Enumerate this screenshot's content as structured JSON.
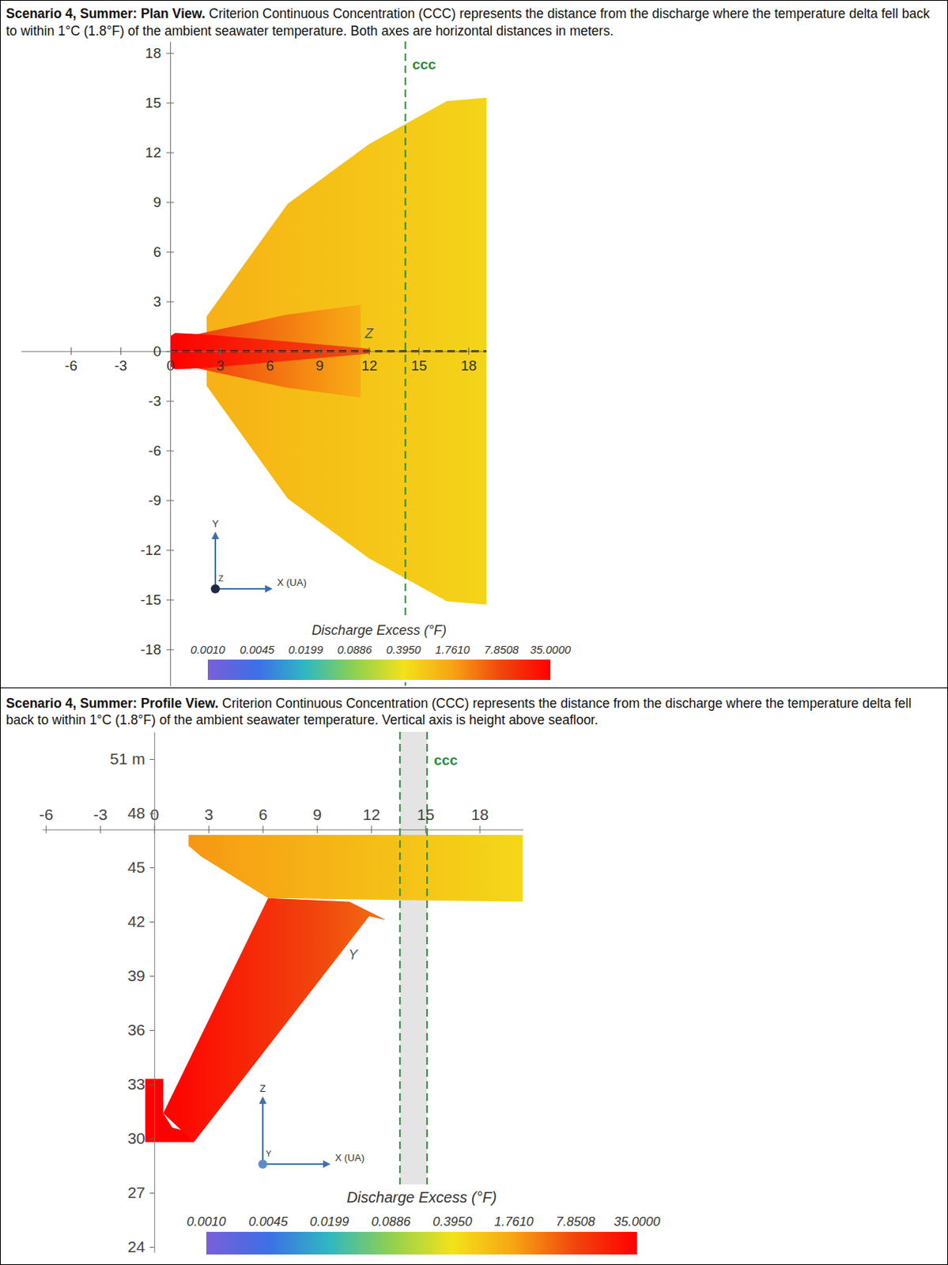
{
  "chart_data": [
    {
      "type": "plan_view",
      "title": "Scenario 4, Summer: Plan View.",
      "subtitle": "Criterion Continuous Concentration (CCC) represents the distance from the discharge where the temperature delta fell back to within 1°C (1.8°F) of the ambient seawater temperature. Both axes are horizontal distances in meters.",
      "xlim": [
        -9,
        19.1
      ],
      "ylim": [
        -20.2,
        18.7
      ],
      "xticks": [
        -6,
        -3,
        0,
        3,
        6,
        9,
        12,
        15,
        18
      ],
      "yticks": [
        -18,
        -15,
        -12,
        -9,
        -6,
        -3,
        0,
        3,
        6,
        9,
        12,
        15,
        18
      ],
      "plume": [
        {
          "x": [
            2.2,
            7.1,
            12,
            16.7,
            19.1,
            19.1,
            16.7,
            12,
            7.1,
            2.2
          ],
          "y": [
            2.1,
            8.9,
            12.5,
            15.1,
            15.3,
            -15.3,
            -15.1,
            -12.5,
            -8.9,
            -2.1
          ],
          "excess": [
            1.3,
            0.55
          ]
        },
        {
          "x": [
            1.5,
            7,
            11.5,
            11.5,
            7,
            1.5
          ],
          "y": [
            1.0,
            2.2,
            2.8,
            -2.8,
            -2.2,
            -1.0
          ],
          "excess": [
            9,
            1.5
          ]
        },
        {
          "x": [
            0,
            0.3,
            2.3,
            12,
            12,
            2.3,
            0.3,
            0
          ],
          "y": [
            0.9,
            1.1,
            1.0,
            0.15,
            -0.15,
            -1.0,
            -1.1,
            -0.9
          ],
          "excess": [
            35,
            6
          ]
        }
      ],
      "ccc": {
        "label": "ccc",
        "x": [
          14.2
        ]
      },
      "annotations": [
        {
          "text": "Z",
          "x": 12,
          "y": 0.8
        }
      ],
      "axis_triad": {
        "x": "X (UA)",
        "y": "Y",
        "z": "Z"
      },
      "colorbar": {
        "title": "Discharge Excess (°F)",
        "log": true,
        "range": [
          0.001,
          35
        ],
        "ticks": [
          {
            "value": 0.001,
            "label": "0.0010"
          },
          0.0045,
          0.0199,
          0.0886,
          {
            "value": 0.395,
            "label": "0.3950"
          },
          {
            "value": 1.761,
            "label": "1.7610"
          },
          7.8508,
          {
            "value": 35,
            "label": "35.0000"
          }
        ],
        "colors": [
          "#7a5fd8",
          "#3d6fe6",
          "#2fb8c0",
          "#8fd14f",
          "#f3e21a",
          "#f7a414",
          "#f0450d",
          "#ff0000"
        ]
      }
    },
    {
      "type": "profile_view",
      "title": "Scenario 4, Summer: Profile View.",
      "subtitle": "Criterion Continuous Concentration (CCC) represents the distance from the discharge where the temperature delta fell back to within 1°C (1.8°F) of the ambient seawater temperature. Vertical axis is height above seafloor.",
      "xlim": [
        -6.2,
        20.4
      ],
      "ylim": [
        23.7,
        52.5
      ],
      "water_surface": 47.1,
      "xticks": [
        -6,
        -3,
        0,
        3,
        6,
        9,
        12,
        15,
        18
      ],
      "yticks": [
        24,
        27,
        30,
        33,
        36,
        39,
        42,
        45,
        48,
        {
          "value": 51,
          "label": "51 m"
        }
      ],
      "plume": [
        {
          "x": [
            -0.5,
            0.5,
            0.5,
            1.0,
            2.2,
            2.2,
            -0.5
          ],
          "y": [
            33.3,
            33.3,
            31.4,
            30.6,
            30.3,
            29.8,
            29.8
          ],
          "excess": [
            35,
            35
          ]
        },
        {
          "x": [
            0.5,
            6.3,
            10.8,
            12.8,
            11.9,
            2.2
          ],
          "y": [
            31.4,
            43.3,
            43.1,
            42.1,
            42.3,
            29.8
          ],
          "excess": [
            35,
            4
          ]
        },
        {
          "x": [
            1.9,
            20.4,
            20.4,
            6.3,
            2.6,
            1.9
          ],
          "y": [
            46.8,
            46.8,
            43.1,
            43.3,
            45.6,
            46.2
          ],
          "excess": [
            2.2,
            0.5
          ]
        }
      ],
      "ccc": {
        "label": "ccc",
        "x": [
          13.6,
          15.1
        ]
      },
      "annotations": [
        {
          "text": "Y",
          "x": 11.0,
          "y": 39.9
        }
      ],
      "axis_triad": {
        "x": "X (UA)",
        "y": "Y",
        "z": "Z"
      },
      "colorbar": {
        "title": "Discharge Excess (°F)",
        "log": true,
        "range": [
          0.001,
          35
        ],
        "ticks": [
          {
            "value": 0.001,
            "label": "0.0010"
          },
          0.0045,
          0.0199,
          0.0886,
          {
            "value": 0.395,
            "label": "0.3950"
          },
          {
            "value": 1.761,
            "label": "1.7610"
          },
          7.8508,
          {
            "value": 35,
            "label": "35.0000"
          }
        ],
        "colors": [
          "#7a5fd8",
          "#3d6fe6",
          "#2fb8c0",
          "#8fd14f",
          "#f3e21a",
          "#f7a414",
          "#f0450d",
          "#ff0000"
        ]
      }
    }
  ]
}
